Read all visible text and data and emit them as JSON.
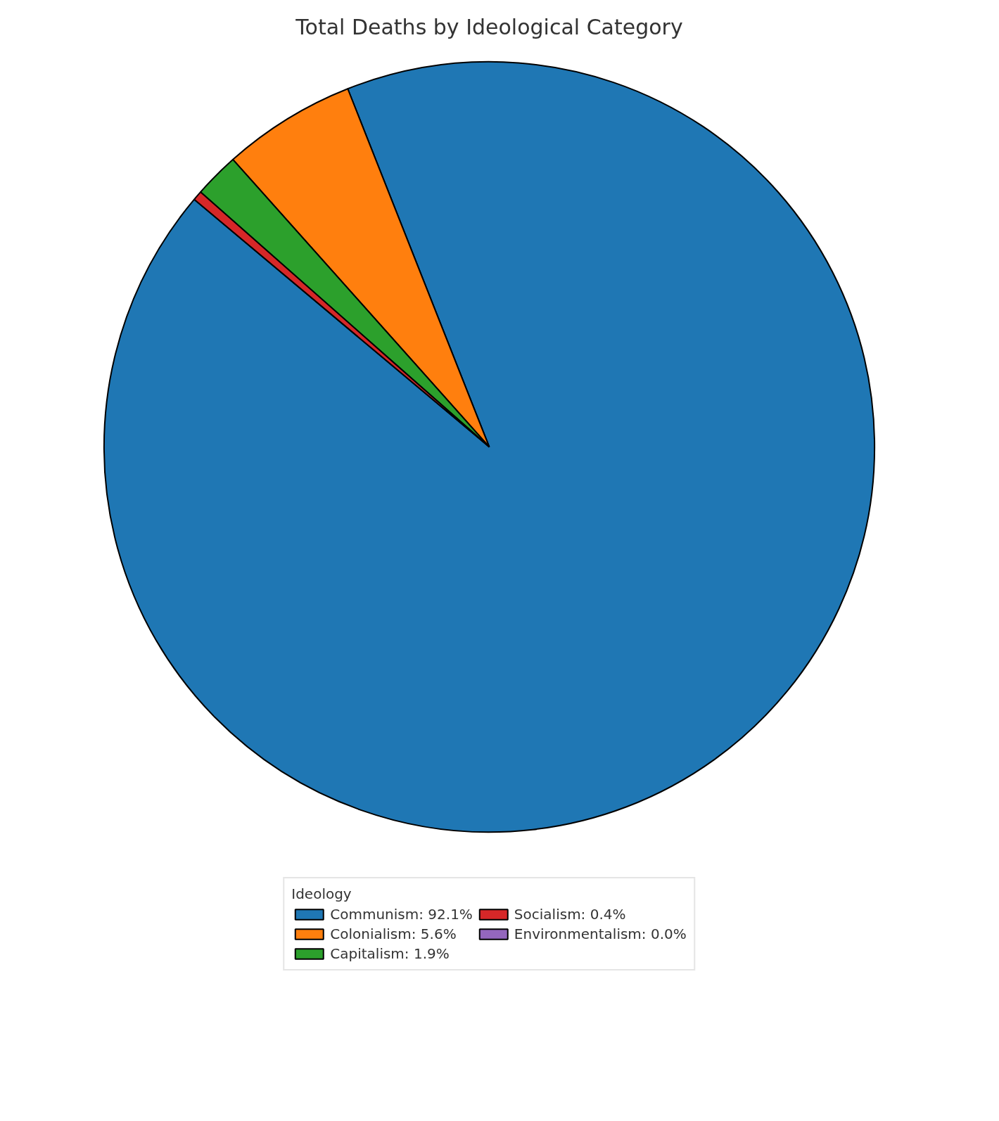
{
  "chart_data": {
    "type": "pie",
    "title": "Total Deaths by Ideological Category",
    "legend_title": "Ideology",
    "categories": [
      "Communism: 92.1%",
      "Colonialism: 5.6%",
      "Capitalism: 1.9%",
      "Socialism: 0.4%",
      "Environmentalism: 0.0%"
    ],
    "values": [
      92.1,
      5.6,
      1.9,
      0.4,
      0.0
    ],
    "colors": [
      "#1f77b4",
      "#ff7f0e",
      "#2ca02c",
      "#d62728",
      "#9467bd"
    ],
    "legend": "bottom"
  }
}
